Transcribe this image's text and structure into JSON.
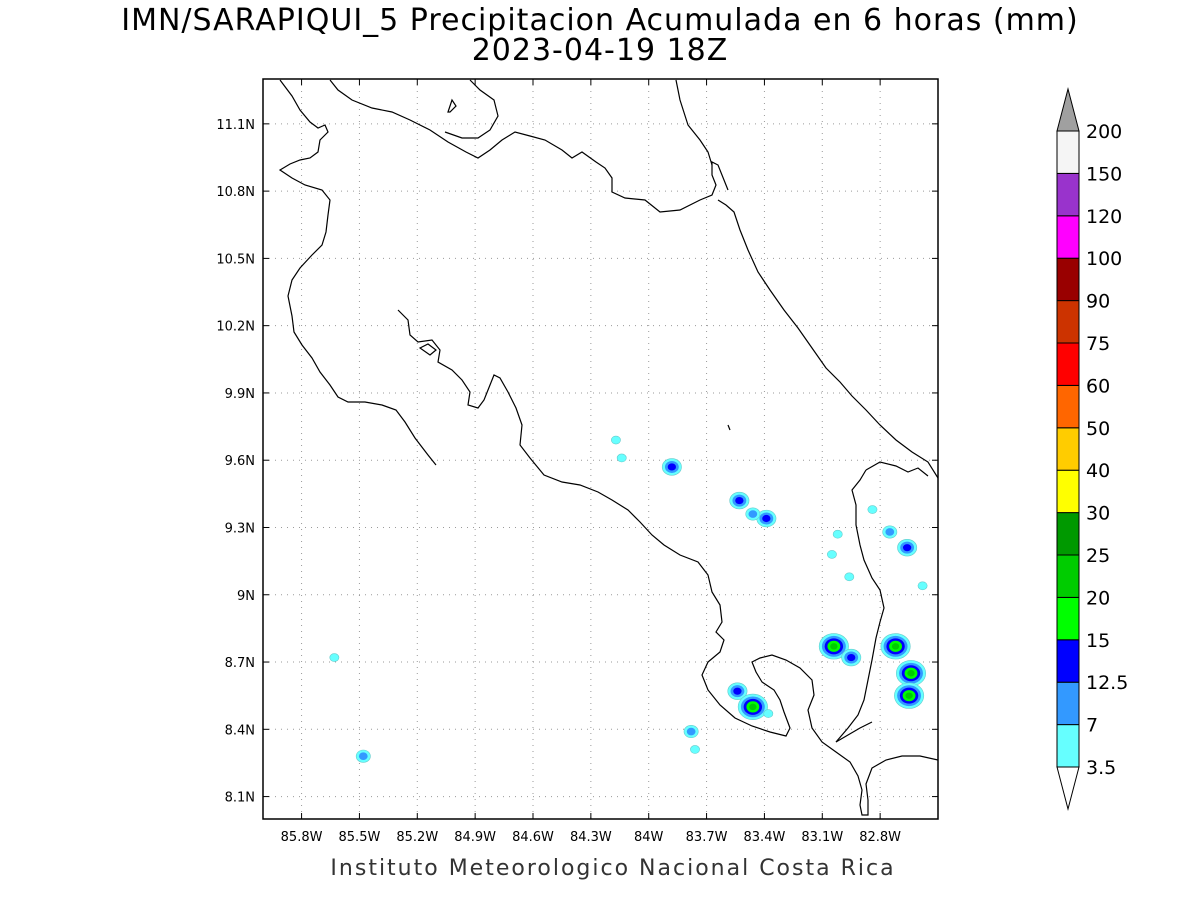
{
  "title": {
    "line1": "IMN/SARAPIQUI_5 Precipitacion Acumulada en 6 horas (mm)",
    "line2": "2023-04-19 18Z"
  },
  "credit": "Instituto Meteorologico Nacional Costa Rica",
  "map": {
    "lon_range": [
      -86.0,
      -82.5
    ],
    "lat_range": [
      8.0,
      11.3
    ],
    "lon_ticks": [
      {
        "value": -85.8,
        "label": "85.8W"
      },
      {
        "value": -85.5,
        "label": "85.5W"
      },
      {
        "value": -85.2,
        "label": "85.2W"
      },
      {
        "value": -84.9,
        "label": "84.9W"
      },
      {
        "value": -84.6,
        "label": "84.6W"
      },
      {
        "value": -84.3,
        "label": "84.3W"
      },
      {
        "value": -84.0,
        "label": "84W"
      },
      {
        "value": -83.7,
        "label": "83.7W"
      },
      {
        "value": -83.4,
        "label": "83.4W"
      },
      {
        "value": -83.1,
        "label": "83.1W"
      },
      {
        "value": -82.8,
        "label": "82.8W"
      }
    ],
    "lat_ticks": [
      {
        "value": 8.1,
        "label": "8.1N"
      },
      {
        "value": 8.4,
        "label": "8.4N"
      },
      {
        "value": 8.7,
        "label": "8.7N"
      },
      {
        "value": 9.0,
        "label": "9N"
      },
      {
        "value": 9.3,
        "label": "9.3N"
      },
      {
        "value": 9.6,
        "label": "9.6N"
      },
      {
        "value": 9.9,
        "label": "9.9N"
      },
      {
        "value": 10.2,
        "label": "10.2N"
      },
      {
        "value": 10.5,
        "label": "10.5N"
      },
      {
        "value": 10.8,
        "label": "10.8N"
      },
      {
        "value": 11.1,
        "label": "11.1N"
      }
    ],
    "grid": "dotted"
  },
  "colorbar": {
    "levels": [
      "3.5",
      "7",
      "12.5",
      "15",
      "20",
      "25",
      "30",
      "40",
      "50",
      "60",
      "75",
      "90",
      "100",
      "120",
      "150",
      "200"
    ],
    "colors": [
      "#66ffff",
      "#3399ff",
      "#0000ff",
      "#00ff00",
      "#00cc00",
      "#009900",
      "#ffff00",
      "#ffcc00",
      "#ff6600",
      "#ff0000",
      "#cc3300",
      "#990000",
      "#ff00ff",
      "#9933cc",
      "#f5f5f5"
    ],
    "over_color": "#a0a0a0",
    "under_color": "#ffffff"
  },
  "precip_cells": [
    {
      "lon": -83.88,
      "lat": 9.57,
      "peak": "12.5"
    },
    {
      "lon": -83.53,
      "lat": 9.42,
      "peak": "12.5"
    },
    {
      "lon": -83.39,
      "lat": 9.34,
      "peak": "12.5"
    },
    {
      "lon": -83.46,
      "lat": 9.36,
      "peak": "7"
    },
    {
      "lon": -84.17,
      "lat": 9.69,
      "peak": "3.5"
    },
    {
      "lon": -84.14,
      "lat": 9.61,
      "peak": "3.5"
    },
    {
      "lon": -83.05,
      "lat": 9.18,
      "peak": "3.5"
    },
    {
      "lon": -83.02,
      "lat": 9.27,
      "peak": "3.5"
    },
    {
      "lon": -82.75,
      "lat": 9.28,
      "peak": "7"
    },
    {
      "lon": -82.66,
      "lat": 9.21,
      "peak": "12.5"
    },
    {
      "lon": -82.84,
      "lat": 9.38,
      "peak": "3.5"
    },
    {
      "lon": -82.96,
      "lat": 9.08,
      "peak": "3.5"
    },
    {
      "lon": -83.04,
      "lat": 8.77,
      "peak": "20"
    },
    {
      "lon": -82.95,
      "lat": 8.72,
      "peak": "12.5"
    },
    {
      "lon": -82.72,
      "lat": 8.77,
      "peak": "20"
    },
    {
      "lon": -82.64,
      "lat": 8.65,
      "peak": "20"
    },
    {
      "lon": -82.65,
      "lat": 8.55,
      "peak": "20"
    },
    {
      "lon": -83.54,
      "lat": 8.57,
      "peak": "12.5"
    },
    {
      "lon": -83.46,
      "lat": 8.5,
      "peak": "20"
    },
    {
      "lon": -83.38,
      "lat": 8.47,
      "peak": "3.5"
    },
    {
      "lon": -83.78,
      "lat": 8.39,
      "peak": "7"
    },
    {
      "lon": -83.76,
      "lat": 8.31,
      "peak": "3.5"
    },
    {
      "lon": -85.48,
      "lat": 8.28,
      "peak": "7"
    },
    {
      "lon": -85.63,
      "lat": 8.72,
      "peak": "3.5"
    },
    {
      "lon": -82.58,
      "lat": 9.04,
      "peak": "3.5"
    }
  ]
}
